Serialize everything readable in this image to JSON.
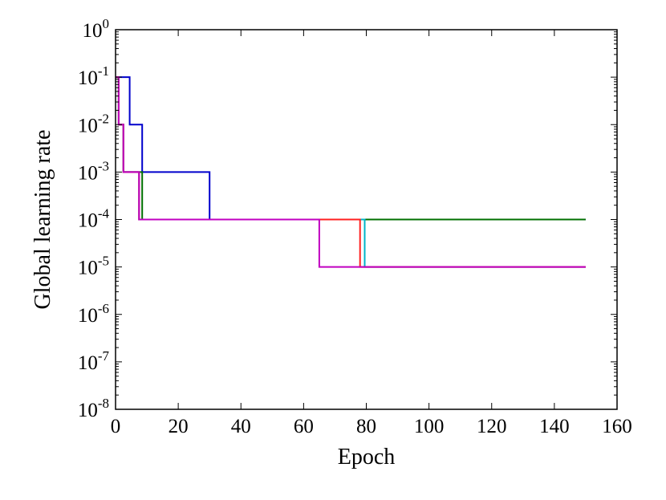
{
  "chart_data": {
    "type": "line",
    "step": "post",
    "xlabel": "Epoch",
    "ylabel": "Global learning rate",
    "xlim": [
      0,
      160
    ],
    "ylim": [
      1e-08,
      1
    ],
    "yscale": "log",
    "grid": false,
    "legend": "none",
    "x_ticks": [
      "0",
      "20",
      "40",
      "60",
      "80",
      "100",
      "120",
      "140",
      "160"
    ],
    "y_ticks": [
      {
        "base": "10",
        "exp": "-8"
      },
      {
        "base": "10",
        "exp": "-7"
      },
      {
        "base": "10",
        "exp": "-6"
      },
      {
        "base": "10",
        "exp": "-5"
      },
      {
        "base": "10",
        "exp": "-4"
      },
      {
        "base": "10",
        "exp": "-3"
      },
      {
        "base": "10",
        "exp": "-2"
      },
      {
        "base": "10",
        "exp": "-1"
      },
      {
        "base": "10",
        "exp": "0"
      }
    ],
    "series": [
      {
        "color": "#0000cc",
        "points": [
          [
            0,
            0.1
          ],
          [
            4.5,
            0.1
          ],
          [
            4.5,
            0.01
          ],
          [
            8.5,
            0.01
          ],
          [
            8.5,
            0.001
          ],
          [
            30,
            0.001
          ],
          [
            30,
            0.0001
          ],
          [
            150,
            0.0001
          ]
        ]
      },
      {
        "color": "#007000",
        "points": [
          [
            0,
            0.1
          ],
          [
            1,
            0.1
          ],
          [
            1,
            0.01
          ],
          [
            2.5,
            0.01
          ],
          [
            2.5,
            0.001
          ],
          [
            8.5,
            0.001
          ],
          [
            8.5,
            0.0001
          ],
          [
            150,
            0.0001
          ]
        ]
      },
      {
        "color": "#00b4c8",
        "points": [
          [
            0,
            0.1
          ],
          [
            1,
            0.1
          ],
          [
            1,
            0.01
          ],
          [
            2.5,
            0.01
          ],
          [
            2.5,
            0.001
          ],
          [
            7.5,
            0.001
          ],
          [
            7.5,
            0.0001
          ],
          [
            79.5,
            0.0001
          ],
          [
            79.5,
            1e-05
          ],
          [
            150,
            1e-05
          ]
        ]
      },
      {
        "color": "#ff2020",
        "points": [
          [
            0,
            0.1
          ],
          [
            1,
            0.1
          ],
          [
            1,
            0.01
          ],
          [
            2.5,
            0.01
          ],
          [
            2.5,
            0.001
          ],
          [
            7.5,
            0.001
          ],
          [
            7.5,
            0.0001
          ],
          [
            78,
            0.0001
          ],
          [
            78,
            1e-05
          ],
          [
            150,
            1e-05
          ]
        ]
      },
      {
        "color": "#c000c0",
        "points": [
          [
            0,
            0.1
          ],
          [
            1,
            0.1
          ],
          [
            1,
            0.01
          ],
          [
            2.5,
            0.01
          ],
          [
            2.5,
            0.001
          ],
          [
            7.5,
            0.001
          ],
          [
            7.5,
            0.0001
          ],
          [
            65,
            0.0001
          ],
          [
            65,
            1e-05
          ],
          [
            150,
            1e-05
          ]
        ]
      }
    ]
  }
}
